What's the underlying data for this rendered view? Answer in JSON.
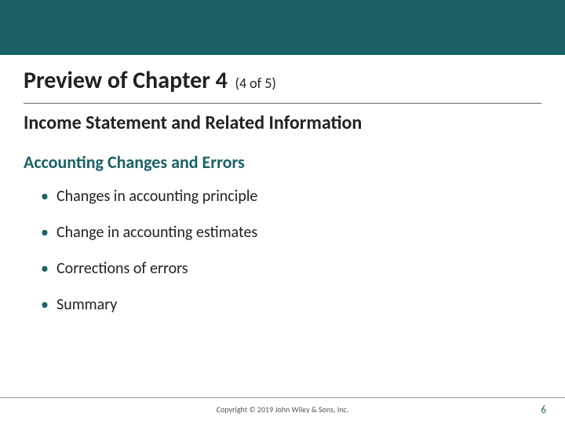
{
  "colors": {
    "teal": "#1b6265",
    "text": "#222222",
    "rule": "#999999",
    "background": "#ffffff"
  },
  "header": {
    "title_main": "Preview of Chapter 4",
    "title_paren": "(4 of 5)",
    "subtitle": "Income Statement and Related Information"
  },
  "section": {
    "heading": "Accounting Changes and Errors",
    "bullets": [
      "Changes in accounting principle",
      "Change in accounting estimates",
      "Corrections of errors",
      "Summary"
    ]
  },
  "footer": {
    "copyright": "Copyright © 2019 John Wiley & Sons, Inc.",
    "page_number": "6"
  }
}
